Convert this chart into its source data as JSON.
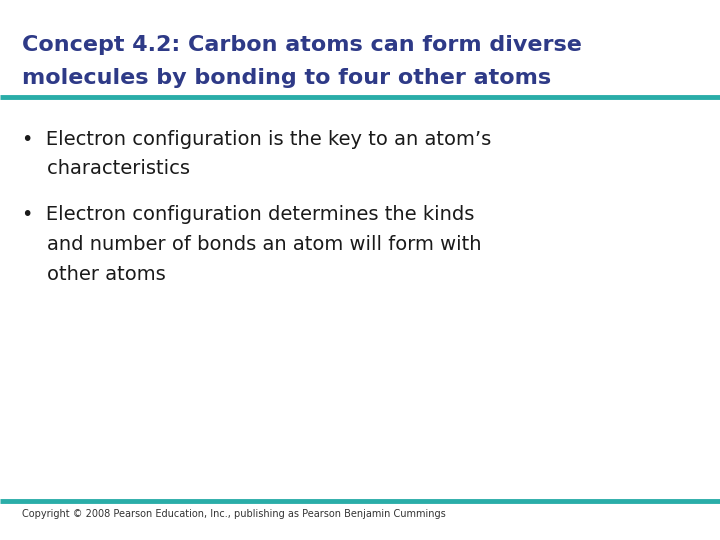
{
  "title_line1": "Concept 4.2: Carbon atoms can form diverse",
  "title_line2": "molecules by bonding to four other atoms",
  "title_color": "#2E3A87",
  "title_fontsize": 16,
  "teal_line_color": "#2AADA8",
  "background_color": "#FFFFFF",
  "bullet_color": "#1a1a1a",
  "bullet_fontsize": 14,
  "bullet1_line1": "•  Electron configuration is the key to an atom’s",
  "bullet1_line2": "    characteristics",
  "bullet2_line1": "•  Electron configuration determines the kinds",
  "bullet2_line2": "    and number of bonds an atom will form with",
  "bullet2_line3": "    other atoms",
  "footer": "Copyright © 2008 Pearson Education, Inc., publishing as Pearson Benjamin Cummings",
  "footer_fontsize": 7,
  "footer_color": "#333333"
}
